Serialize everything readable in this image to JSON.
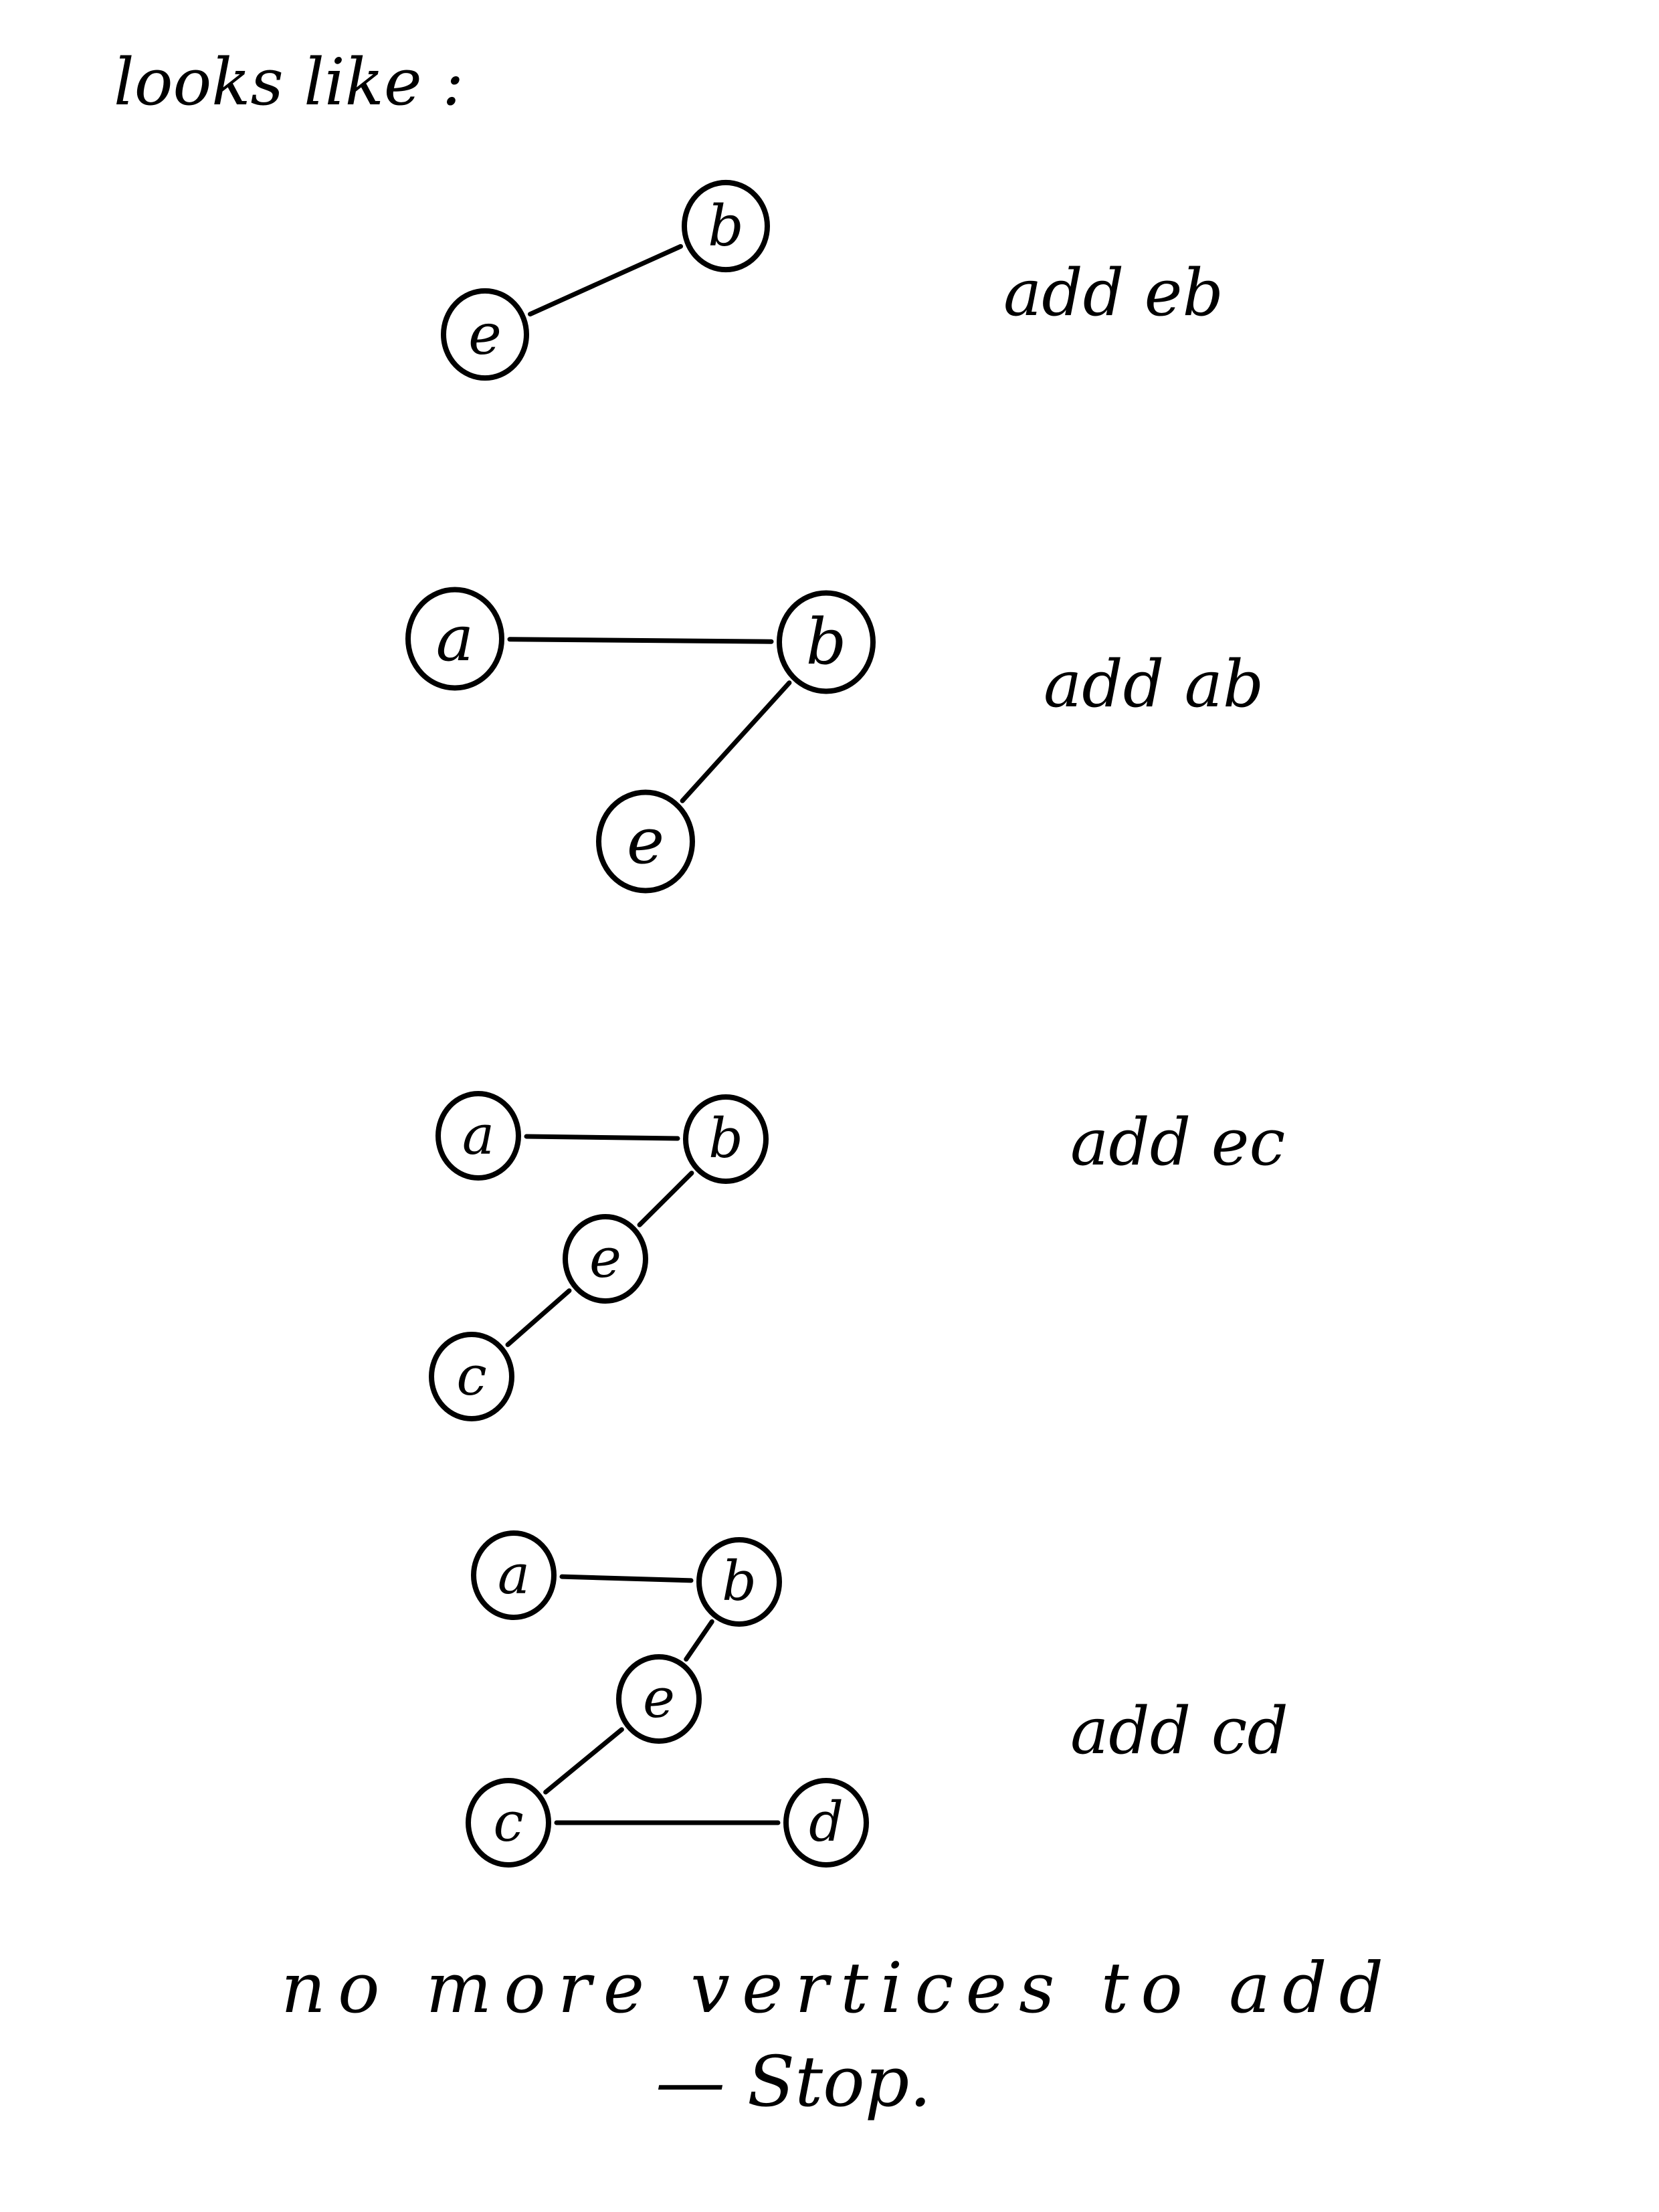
{
  "heading": "looks like :",
  "steps": [
    {
      "caption": "add eb",
      "nodes": [
        {
          "id": "b",
          "label": "b"
        },
        {
          "id": "e",
          "label": "e"
        }
      ],
      "edges": [
        {
          "from": "e",
          "to": "b"
        }
      ]
    },
    {
      "caption": "add ab",
      "nodes": [
        {
          "id": "a",
          "label": "a"
        },
        {
          "id": "b",
          "label": "b"
        },
        {
          "id": "e",
          "label": "e"
        }
      ],
      "edges": [
        {
          "from": "a",
          "to": "b"
        },
        {
          "from": "b",
          "to": "e"
        }
      ]
    },
    {
      "caption": "add ec",
      "nodes": [
        {
          "id": "a",
          "label": "a"
        },
        {
          "id": "b",
          "label": "b"
        },
        {
          "id": "e",
          "label": "e"
        },
        {
          "id": "c",
          "label": "c"
        }
      ],
      "edges": [
        {
          "from": "a",
          "to": "b"
        },
        {
          "from": "b",
          "to": "e"
        },
        {
          "from": "e",
          "to": "c"
        }
      ]
    },
    {
      "caption": "add cd",
      "nodes": [
        {
          "id": "a",
          "label": "a"
        },
        {
          "id": "b",
          "label": "b"
        },
        {
          "id": "e",
          "label": "e"
        },
        {
          "id": "c",
          "label": "c"
        },
        {
          "id": "d",
          "label": "d"
        }
      ],
      "edges": [
        {
          "from": "a",
          "to": "b"
        },
        {
          "from": "b",
          "to": "e"
        },
        {
          "from": "e",
          "to": "c"
        },
        {
          "from": "c",
          "to": "d"
        }
      ]
    }
  ],
  "conclusion": {
    "line1": "no more vertices to add",
    "line2": "— Stop."
  }
}
